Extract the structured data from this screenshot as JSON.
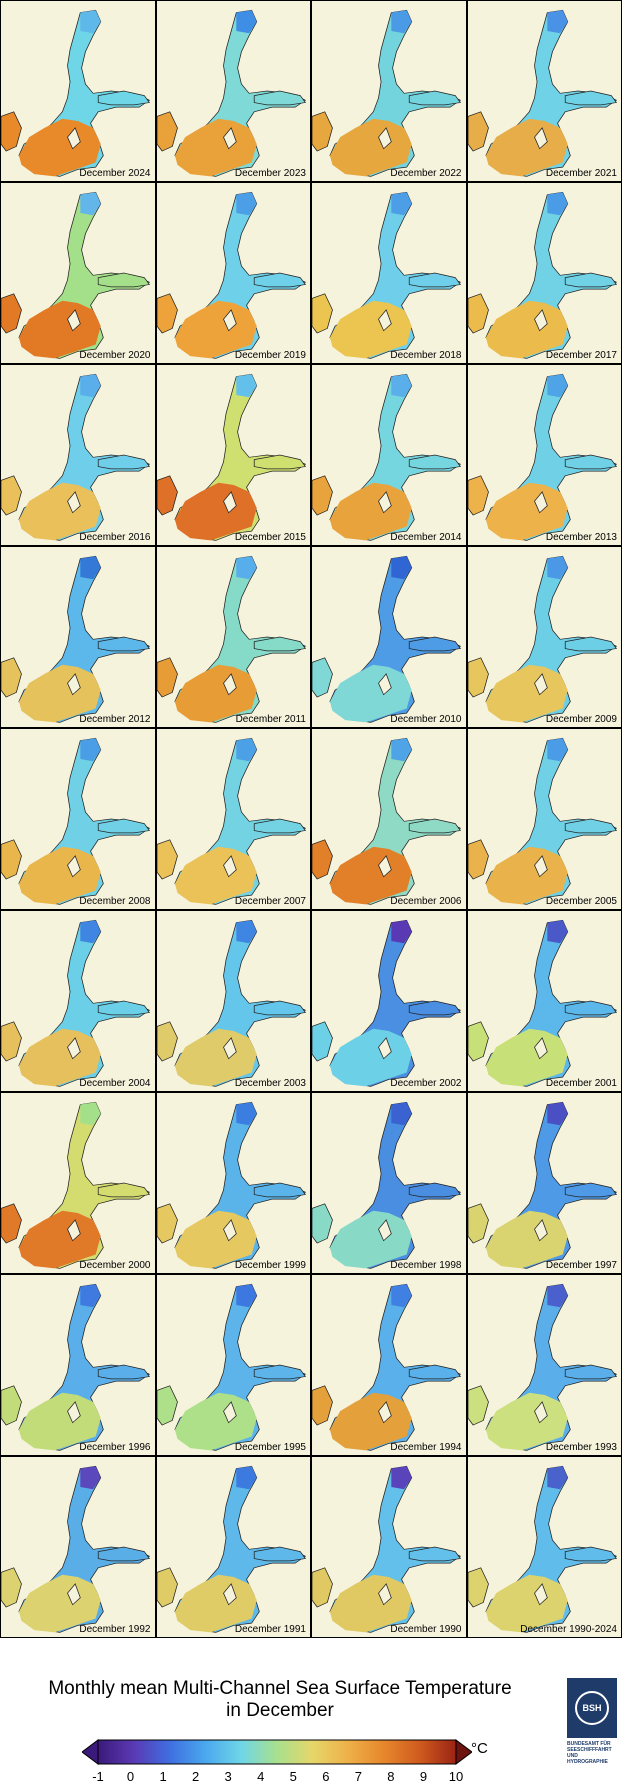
{
  "panels": [
    {
      "label": "December 2024",
      "color": "#6ed6e6",
      "south_color": "#e88a2a",
      "north_color": "#5fb8ea"
    },
    {
      "label": "December 2023",
      "color": "#7fd9d6",
      "south_color": "#e9a13a",
      "north_color": "#3f8ee6"
    },
    {
      "label": "December 2022",
      "color": "#74d4de",
      "south_color": "#e6a83e",
      "north_color": "#4a9ae6"
    },
    {
      "label": "December 2021",
      "color": "#6fd2e6",
      "south_color": "#e6ad48",
      "north_color": "#4a92e6"
    },
    {
      "label": "December 2020",
      "color": "#a4e08a",
      "south_color": "#e27a25",
      "north_color": "#62b6ea"
    },
    {
      "label": "December 2019",
      "color": "#6fd0ea",
      "south_color": "#eea33a",
      "north_color": "#4c9ee6"
    },
    {
      "label": "December 2018",
      "color": "#6fcfea",
      "south_color": "#ebc550",
      "north_color": "#4c9ee6"
    },
    {
      "label": "December 2017",
      "color": "#70d2e4",
      "south_color": "#ebbc4c",
      "north_color": "#4a9ce6"
    },
    {
      "label": "December 2016",
      "color": "#6fcfea",
      "south_color": "#e9c05a",
      "north_color": "#5aaeea"
    },
    {
      "label": "December 2015",
      "color": "#cfe070",
      "south_color": "#de7028",
      "north_color": "#62c0ea"
    },
    {
      "label": "December 2014",
      "color": "#76d6e0",
      "south_color": "#e9a33c",
      "north_color": "#5aaeea"
    },
    {
      "label": "December 2013",
      "color": "#70d1e6",
      "south_color": "#edb24a",
      "north_color": "#4ea4e6"
    },
    {
      "label": "December 2012",
      "color": "#5cb8ea",
      "south_color": "#e6c25c",
      "north_color": "#3478d8"
    },
    {
      "label": "December 2011",
      "color": "#86dac8",
      "south_color": "#e79c36",
      "north_color": "#58aeea"
    },
    {
      "label": "December 2010",
      "color": "#4e9ce6",
      "south_color": "#7fd8d6",
      "north_color": "#2f66d4"
    },
    {
      "label": "December 2009",
      "color": "#6ccfe6",
      "south_color": "#e8c65e",
      "north_color": "#4a98e6"
    },
    {
      "label": "December 2008",
      "color": "#70d1e6",
      "south_color": "#e9b64c",
      "north_color": "#4a9ee6"
    },
    {
      "label": "December 2007",
      "color": "#74d3e2",
      "south_color": "#eac258",
      "north_color": "#4ca0e6"
    },
    {
      "label": "December 2006",
      "color": "#8fdac4",
      "south_color": "#e2802a",
      "north_color": "#4ea4e6"
    },
    {
      "label": "December 2005",
      "color": "#70d1e6",
      "south_color": "#e9b24a",
      "north_color": "#4a9ce6"
    },
    {
      "label": "December 2004",
      "color": "#6ccfe8",
      "south_color": "#e6c05c",
      "north_color": "#3f86e2"
    },
    {
      "label": "December 2003",
      "color": "#64c6ea",
      "south_color": "#dfcb6a",
      "north_color": "#3f86e2"
    },
    {
      "label": "December 2002",
      "color": "#4a8fe2",
      "south_color": "#6cd0e6",
      "north_color": "#5a3ab4"
    },
    {
      "label": "December 2001",
      "color": "#5cb8ea",
      "south_color": "#c8e078",
      "north_color": "#4a58c8"
    },
    {
      "label": "December 2000",
      "color": "#d4dc70",
      "south_color": "#e07a28",
      "north_color": "#a4e08a"
    },
    {
      "label": "December 1999",
      "color": "#5ab4ea",
      "south_color": "#e6c860",
      "north_color": "#3c7ee0"
    },
    {
      "label": "December 1998",
      "color": "#4a8ee2",
      "south_color": "#88dac6",
      "north_color": "#3a62d0"
    },
    {
      "label": "December 1997",
      "color": "#4e9ae6",
      "south_color": "#d9d470",
      "north_color": "#4a50c4"
    },
    {
      "label": "December 1996",
      "color": "#5aaeea",
      "south_color": "#c2dc7a",
      "north_color": "#3f7ae0"
    },
    {
      "label": "December 1995",
      "color": "#5cb4ea",
      "south_color": "#aee08a",
      "north_color": "#3c78e0"
    },
    {
      "label": "December 1994",
      "color": "#5ab0ea",
      "south_color": "#e4a03a",
      "north_color": "#3f80e2"
    },
    {
      "label": "December 1993",
      "color": "#5aaeea",
      "south_color": "#cce080",
      "north_color": "#4a60cc"
    },
    {
      "label": "December 1992",
      "color": "#5aaee8",
      "south_color": "#dcd270",
      "north_color": "#5a48bc"
    },
    {
      "label": "December 1991",
      "color": "#5eb8ea",
      "south_color": "#e0cc66",
      "north_color": "#3c7ae0"
    },
    {
      "label": "December 1990",
      "color": "#62c0ea",
      "south_color": "#e0c862",
      "north_color": "#5a44bc"
    },
    {
      "label": "December 1990-2024",
      "color": "#60bcea",
      "south_color": "#dcd26e",
      "north_color": "#4a62cc"
    }
  ],
  "legend": {
    "title_line1": "Monthly mean Multi-Channel Sea Surface Temperature",
    "title_line2": "in December",
    "unit": "°C",
    "ticks": [
      "-1",
      "0",
      "1",
      "2",
      "3",
      "4",
      "5",
      "6",
      "7",
      "8",
      "9",
      "10"
    ],
    "range": [
      -1,
      10
    ],
    "colors": [
      "#3b1a7a",
      "#5a3ab4",
      "#3f6ee0",
      "#4aa8ee",
      "#6fd6e6",
      "#a8e08e",
      "#e6d66a",
      "#eeb048",
      "#e6862c",
      "#cf5a1e",
      "#9a2414"
    ]
  },
  "logo": {
    "emblem_text": "BSH",
    "caption": "BUNDESAMT FÜR SEESCHIFFFAHRT UND HYDROGRAPHIE"
  }
}
